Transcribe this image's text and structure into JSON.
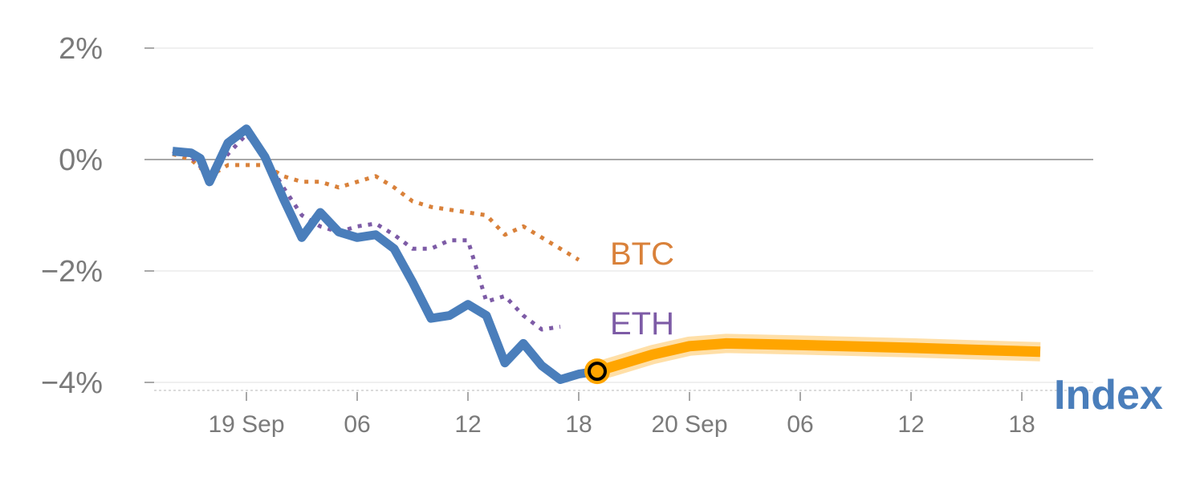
{
  "chart_data": {
    "type": "line",
    "title": "",
    "xlabel": "",
    "ylabel": "",
    "ylim": [
      -4.15,
      2
    ],
    "y_ticks": [
      {
        "value": 2,
        "label": "2%"
      },
      {
        "value": 0,
        "label": "0%"
      },
      {
        "value": -2,
        "label": "−2%"
      },
      {
        "value": -4,
        "label": "−4%"
      }
    ],
    "x_ticks": [
      {
        "hour": 0,
        "label": "19 Sep"
      },
      {
        "hour": 6,
        "label": "06"
      },
      {
        "hour": 12,
        "label": "12"
      },
      {
        "hour": 18,
        "label": "18"
      },
      {
        "hour": 24,
        "label": "20 Sep"
      },
      {
        "hour": 30,
        "label": "06"
      },
      {
        "hour": 36,
        "label": "12"
      },
      {
        "hour": 42,
        "label": "18"
      }
    ],
    "grid": true,
    "series": [
      {
        "name": "BTC",
        "style": "dotted",
        "color": "#d9813a",
        "points": [
          [
            -4,
            0.1
          ],
          [
            -3,
            0.0
          ],
          [
            -2,
            -0.3
          ],
          [
            -1,
            -0.1
          ],
          [
            0,
            -0.1
          ],
          [
            1,
            -0.1
          ],
          [
            2,
            -0.3
          ],
          [
            3,
            -0.4
          ],
          [
            4,
            -0.4
          ],
          [
            5,
            -0.5
          ],
          [
            6,
            -0.4
          ],
          [
            7,
            -0.3
          ],
          [
            8,
            -0.5
          ],
          [
            9,
            -0.75
          ],
          [
            10,
            -0.85
          ],
          [
            11,
            -0.9
          ],
          [
            12,
            -0.95
          ],
          [
            13,
            -1.0
          ],
          [
            14,
            -1.35
          ],
          [
            15,
            -1.2
          ],
          [
            16,
            -1.4
          ],
          [
            17,
            -1.6
          ],
          [
            18,
            -1.8
          ]
        ]
      },
      {
        "name": "ETH",
        "style": "dotted",
        "color": "#7d5ba6",
        "points": [
          [
            -4,
            0.15
          ],
          [
            -3,
            0.05
          ],
          [
            -2,
            -0.3
          ],
          [
            -1,
            0.1
          ],
          [
            0,
            0.45
          ],
          [
            1,
            0.05
          ],
          [
            2,
            -0.5
          ],
          [
            3,
            -1.0
          ],
          [
            4,
            -1.2
          ],
          [
            5,
            -1.3
          ],
          [
            6,
            -1.2
          ],
          [
            7,
            -1.15
          ],
          [
            8,
            -1.35
          ],
          [
            9,
            -1.6
          ],
          [
            10,
            -1.6
          ],
          [
            11,
            -1.45
          ],
          [
            12,
            -1.45
          ],
          [
            13,
            -2.55
          ],
          [
            14,
            -2.45
          ],
          [
            15,
            -2.8
          ],
          [
            16,
            -3.05
          ],
          [
            17,
            -3.0
          ]
        ]
      },
      {
        "name": "Index",
        "style": "solid",
        "color": "#4a7ebb",
        "points": [
          [
            -4,
            0.15
          ],
          [
            -3,
            0.12
          ],
          [
            -2.5,
            0.02
          ],
          [
            -2,
            -0.4
          ],
          [
            -1,
            0.3
          ],
          [
            0,
            0.55
          ],
          [
            1,
            0.05
          ],
          [
            2,
            -0.7
          ],
          [
            3,
            -1.4
          ],
          [
            4,
            -0.95
          ],
          [
            5,
            -1.3
          ],
          [
            6,
            -1.4
          ],
          [
            7,
            -1.35
          ],
          [
            8,
            -1.6
          ],
          [
            9,
            -2.2
          ],
          [
            10,
            -2.85
          ],
          [
            11,
            -2.8
          ],
          [
            12,
            -2.6
          ],
          [
            13,
            -2.8
          ],
          [
            14,
            -3.65
          ],
          [
            15,
            -3.3
          ],
          [
            16,
            -3.7
          ],
          [
            17,
            -3.95
          ],
          [
            18,
            -3.85
          ],
          [
            19,
            -3.8
          ]
        ]
      },
      {
        "name": "",
        "style": "forecast",
        "color": "#ffa500",
        "points": [
          [
            19,
            -3.8
          ],
          [
            20,
            -3.7
          ],
          [
            22,
            -3.5
          ],
          [
            24,
            -3.35
          ],
          [
            26,
            -3.3
          ],
          [
            30,
            -3.33
          ],
          [
            36,
            -3.38
          ],
          [
            40,
            -3.42
          ],
          [
            43,
            -3.45
          ]
        ]
      }
    ],
    "labels": [
      {
        "text": "BTC",
        "color": "#d9813a"
      },
      {
        "text": "ETH",
        "color": "#7d5ba6"
      },
      {
        "text": "Index",
        "color": "#4a7ebb"
      }
    ],
    "marker": {
      "hour": 19,
      "value": -3.8,
      "fill": "#ffa500",
      "stroke": "#000000"
    }
  }
}
